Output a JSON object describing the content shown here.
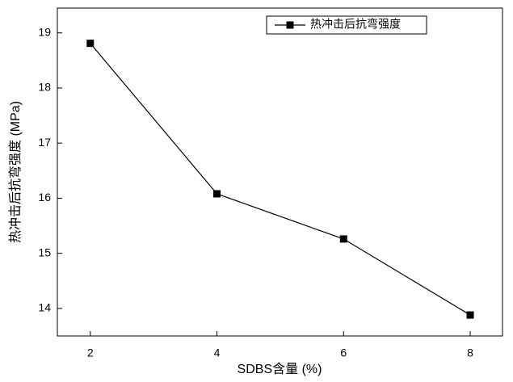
{
  "chart_data": {
    "type": "line",
    "x_label": "SDBS含量 (%)",
    "y_label": "热冲击后抗弯强度 (MPa)",
    "x": [
      2,
      4,
      6,
      8
    ],
    "series": [
      {
        "name": "热冲击后抗弯强度",
        "color": "#000000",
        "values": [
          18.81,
          16.08,
          15.26,
          13.88
        ]
      }
    ],
    "xlim": [
      1.48,
      8.51
    ],
    "xticks": [
      2,
      4,
      6,
      8
    ],
    "ylim": [
      13.5,
      19.45
    ],
    "yticks": [
      14,
      15,
      16,
      17,
      18,
      19
    ],
    "legend": "top-right",
    "grid": false
  }
}
